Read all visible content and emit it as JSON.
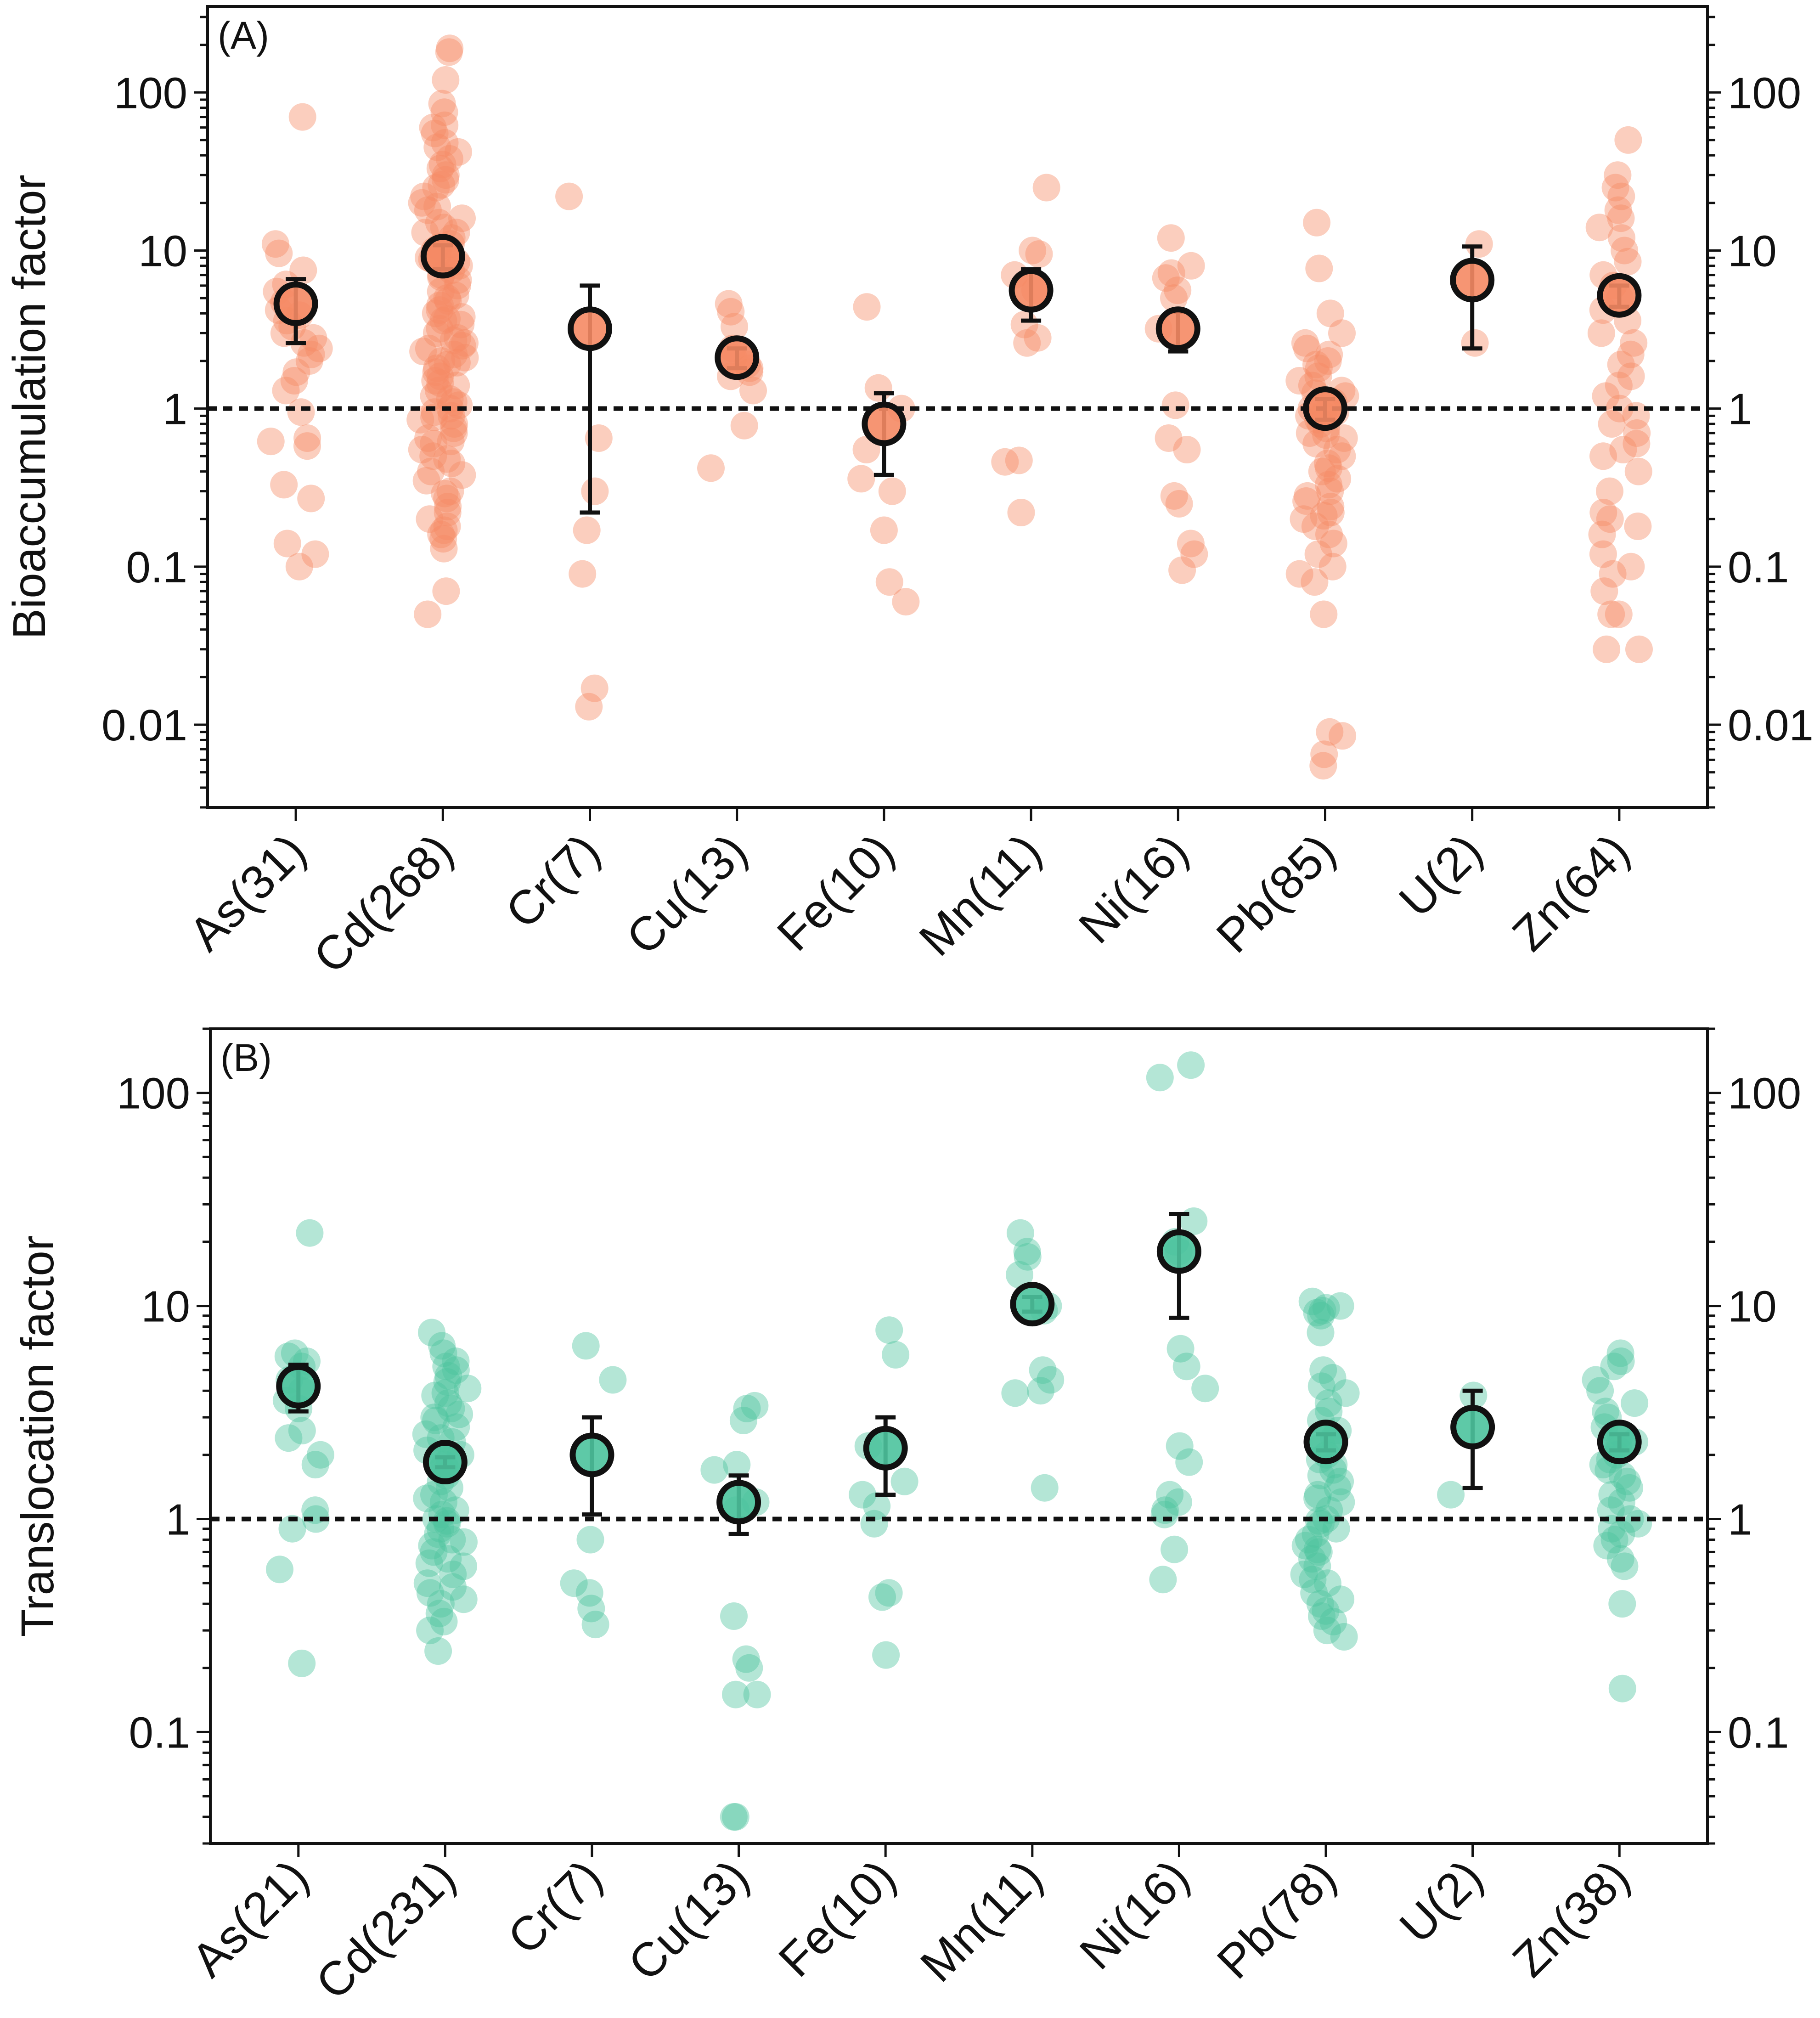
{
  "colors": {
    "panel_a_points": "#F58A64",
    "panel_b_points": "#4CC39D",
    "mean_edge": "#111111",
    "axes": "#111111",
    "reference_line": "#111111"
  },
  "chart_data": [
    {
      "type": "scatter",
      "panel_label": "(A)",
      "ylabel": "Bioaccumulation factor",
      "yscale": "log",
      "ylim": [
        0.003,
        350
      ],
      "yticks": [
        {
          "value": 0.01,
          "label": "0.01"
        },
        {
          "value": 0.1,
          "label": "0.1"
        },
        {
          "value": 1,
          "label": "1"
        },
        {
          "value": 10,
          "label": "10"
        },
        {
          "value": 100,
          "label": "100"
        }
      ],
      "reference_line": 1,
      "categories": [
        "As(31)",
        "Cd(268)",
        "Cr(7)",
        "Cu(13)",
        "Fe(10)",
        "Mn(11)",
        "Ni(16)",
        "Pb(85)",
        "U(2)",
        "Zn(64)"
      ],
      "means": [
        4.6,
        9.2,
        3.2,
        2.1,
        0.8,
        5.6,
        3.2,
        1.0,
        6.5,
        5.2
      ],
      "error_low": [
        2.6,
        7.6,
        0.22,
        1.8,
        0.38,
        3.6,
        2.3,
        0.85,
        2.4,
        4.4
      ],
      "error_high": [
        6.6,
        10.8,
        6.0,
        2.4,
        1.25,
        7.6,
        4.1,
        1.15,
        10.6,
        6.0
      ],
      "points": [
        [
          70,
          11,
          9.6,
          7.5,
          6.1,
          5.5,
          4.7,
          4.2,
          3.9,
          3.6,
          3.3,
          3.0,
          2.8,
          2.6,
          2.4,
          2.2,
          2.0,
          1.7,
          1.5,
          1.3,
          0.95,
          0.65,
          0.62,
          0.58,
          0.33,
          0.27,
          0.14,
          0.12,
          0.1
        ],
        [
          190,
          180,
          120,
          85,
          75,
          62,
          55,
          48,
          42,
          38,
          35,
          30,
          28,
          25,
          22,
          20,
          18,
          16,
          15,
          14,
          13,
          12,
          11,
          10.5,
          10,
          9.5,
          9,
          8.5,
          8,
          7.5,
          7,
          6.5,
          6,
          5.5,
          5,
          4.8,
          4.5,
          4.2,
          4,
          3.8,
          3.6,
          3.4,
          3.2,
          3,
          2.8,
          2.6,
          2.5,
          2.4,
          2.3,
          2.2,
          2.1,
          2,
          1.9,
          1.8,
          1.7,
          1.6,
          1.5,
          1.4,
          1.3,
          1.2,
          1.1,
          1.05,
          1,
          0.95,
          0.9,
          0.85,
          0.8,
          0.75,
          0.7,
          0.65,
          0.6,
          0.55,
          0.5,
          0.45,
          0.4,
          0.35,
          0.3,
          0.27,
          0.24,
          0.2,
          0.18,
          0.17,
          0.15,
          0.13,
          0.07,
          0.05,
          60,
          45,
          33,
          26,
          19,
          13,
          8.8,
          6.8,
          5.2,
          3.7,
          2.7,
          1.95,
          1.45,
          1.15,
          0.88,
          0.62,
          0.48,
          0.38,
          0.29,
          0.22,
          0.16
        ],
        [
          22,
          0.65,
          0.3,
          0.17,
          0.09,
          0.017,
          0.013
        ],
        [
          4.6,
          4.1,
          3.3,
          2.4,
          2.1,
          1.9,
          1.8,
          1.7,
          1.6,
          1.3,
          0.78,
          0.42
        ],
        [
          4.4,
          1.35,
          1.0,
          0.55,
          0.36,
          0.3,
          0.17,
          0.08,
          0.06
        ],
        [
          25,
          10,
          9.5,
          7,
          5.6,
          3.4,
          2.8,
          2.6,
          0.47,
          0.46,
          0.22
        ],
        [
          12,
          8,
          7.2,
          6.7,
          5.6,
          5,
          3.2,
          1.05,
          0.65,
          0.55,
          0.28,
          0.25,
          0.14,
          0.12,
          0.095
        ],
        [
          15,
          7.7,
          4,
          3,
          2.6,
          2.4,
          2.2,
          2.0,
          1.9,
          1.8,
          1.6,
          1.5,
          1.4,
          1.3,
          1.2,
          1.1,
          1.05,
          1.0,
          0.95,
          0.9,
          0.85,
          0.8,
          0.75,
          0.7,
          0.65,
          0.6,
          0.55,
          0.5,
          0.45,
          0.4,
          0.36,
          0.33,
          0.3,
          0.28,
          0.26,
          0.24,
          0.22,
          0.2,
          0.18,
          0.16,
          0.14,
          0.12,
          0.1,
          0.09,
          0.08,
          0.05,
          0.009,
          0.0085,
          0.0065,
          0.0055,
          1.25,
          0.92,
          0.68,
          0.42,
          0.21
        ],
        [
          11,
          2.6
        ],
        [
          50,
          30,
          25,
          22,
          18,
          16,
          14,
          12,
          10,
          8.5,
          7,
          6,
          5,
          4.2,
          3.6,
          3.0,
          2.6,
          2.2,
          1.9,
          1.6,
          1.4,
          1.2,
          1.0,
          0.9,
          0.8,
          0.7,
          0.6,
          0.55,
          0.5,
          0.4,
          0.3,
          0.22,
          0.2,
          0.18,
          0.16,
          0.12,
          0.1,
          0.09,
          0.07,
          0.05,
          0.05,
          0.03,
          0.03
        ]
      ]
    },
    {
      "type": "scatter",
      "panel_label": "(B)",
      "ylabel": "Translocation factor",
      "yscale": "log",
      "ylim": [
        0.03,
        200
      ],
      "yticks": [
        {
          "value": 0.1,
          "label": "0.1"
        },
        {
          "value": 1,
          "label": "1"
        },
        {
          "value": 10,
          "label": "10"
        },
        {
          "value": 100,
          "label": "100"
        }
      ],
      "reference_line": 1,
      "categories": [
        "As(21)",
        "Cd(231)",
        "Cr(7)",
        "Cu(13)",
        "Fe(10)",
        "Mn(11)",
        "Ni(16)",
        "Pb(78)",
        "U(2)",
        "Zn(38)"
      ],
      "means": [
        4.2,
        1.85,
        2.0,
        1.2,
        2.15,
        10.2,
        18,
        2.3,
        2.7,
        2.3
      ],
      "error_low": [
        3.2,
        1.75,
        1.05,
        0.85,
        1.3,
        9.4,
        8.8,
        2.1,
        1.4,
        2.1
      ],
      "error_high": [
        5.3,
        1.95,
        3.0,
        1.6,
        3.0,
        11.0,
        27,
        2.5,
        4.0,
        2.5
      ],
      "points": [
        [
          22,
          6,
          5.8,
          5.5,
          5.2,
          4.5,
          4.0,
          3.6,
          3.3,
          2.6,
          2.4,
          2.0,
          1.8,
          1.1,
          1.0,
          0.9,
          0.58,
          0.21
        ],
        [
          7.5,
          6.5,
          6,
          5.5,
          5,
          4.7,
          4.4,
          4.1,
          3.8,
          3.5,
          3.3,
          3.1,
          2.9,
          2.7,
          2.5,
          2.3,
          2.1,
          2.0,
          1.9,
          1.8,
          1.7,
          1.6,
          1.5,
          1.4,
          1.3,
          1.2,
          1.1,
          1.05,
          1.0,
          0.95,
          0.9,
          0.85,
          0.8,
          0.75,
          0.7,
          0.65,
          0.6,
          0.55,
          0.5,
          0.45,
          0.42,
          0.4,
          0.36,
          0.33,
          0.3,
          0.24,
          5.2,
          3.9,
          3.0,
          2.4,
          1.7,
          1.25,
          0.98,
          0.78,
          0.62,
          0.48
        ],
        [
          6.5,
          4.5,
          0.8,
          0.5,
          0.45,
          0.38,
          0.32
        ],
        [
          3.4,
          3.3,
          2.9,
          1.8,
          1.7,
          1.2,
          1.1,
          0.35,
          0.22,
          0.2,
          0.15,
          0.15,
          0.04,
          0.04
        ],
        [
          7.7,
          5.9,
          2.2,
          1.5,
          1.3,
          1.15,
          0.95,
          0.45,
          0.43,
          0.23
        ],
        [
          22,
          18,
          17,
          14,
          10,
          9.5,
          5,
          4.5,
          4,
          3.9,
          1.4
        ],
        [
          135,
          118,
          25,
          20,
          18,
          6.3,
          5.2,
          4.1,
          2.2,
          1.85,
          1.3,
          1.2,
          1.1,
          1.05,
          0.72,
          0.52
        ],
        [
          10.5,
          10,
          9.8,
          9.5,
          9.3,
          9.0,
          7.5,
          5.0,
          4.6,
          4.2,
          3.9,
          3.5,
          3.2,
          2.9,
          2.6,
          2.4,
          2.2,
          2.0,
          1.9,
          1.8,
          1.7,
          1.6,
          1.5,
          1.4,
          1.3,
          1.2,
          1.1,
          1.0,
          0.95,
          0.9,
          0.85,
          0.8,
          0.75,
          0.7,
          0.65,
          0.6,
          0.55,
          0.5,
          0.45,
          0.42,
          0.4,
          0.37,
          0.35,
          0.33,
          0.3,
          0.28,
          1.25,
          0.98,
          0.72,
          0.52
        ],
        [
          3.8,
          1.3
        ],
        [
          6.0,
          5.5,
          5.2,
          4.5,
          4.0,
          3.5,
          3.2,
          3.0,
          2.7,
          2.5,
          2.3,
          2.2,
          2.1,
          2.0,
          1.9,
          1.8,
          1.7,
          1.6,
          1.5,
          1.4,
          1.3,
          1.2,
          1.1,
          1.0,
          0.95,
          0.9,
          0.85,
          0.8,
          0.75,
          0.65,
          0.6,
          0.4,
          0.16
        ]
      ]
    }
  ]
}
